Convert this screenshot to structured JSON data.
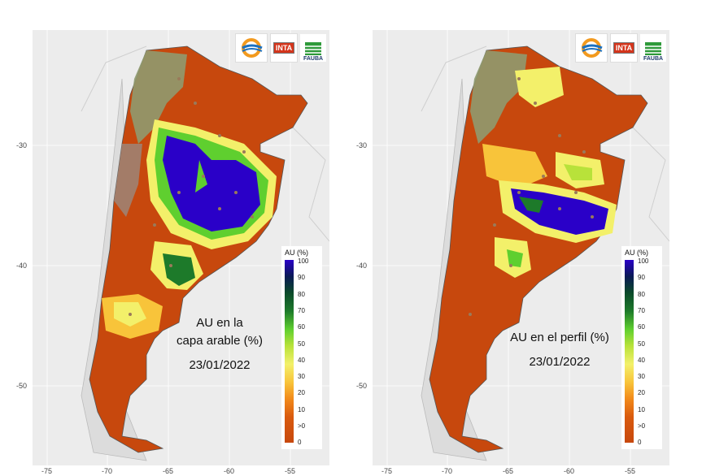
{
  "axes": {
    "x_ticks": [
      "-75",
      "-70",
      "-65",
      "-60",
      "-55"
    ],
    "y_ticks": [
      "-30",
      "-40",
      "-50"
    ]
  },
  "legend": {
    "title": "AU (%)",
    "labels": [
      "100",
      "90",
      "80",
      "70",
      "60",
      "50",
      "40",
      "30",
      "20",
      "10",
      ">0",
      "0"
    ]
  },
  "logos": {
    "inta": "INTA",
    "fauba": "FAUBA"
  },
  "maps": [
    {
      "caption_line1": "AU en la",
      "caption_line2": "capa arable (%)",
      "date": "23/01/2022"
    },
    {
      "caption_line1": "AU en el perfil (%)",
      "date": "23/01/2022"
    }
  ],
  "colors": {
    "very_wet": "#2a00c8",
    "wet": "#1d7a2a",
    "medium": "#f3f06a",
    "dry": "#c7480d"
  }
}
